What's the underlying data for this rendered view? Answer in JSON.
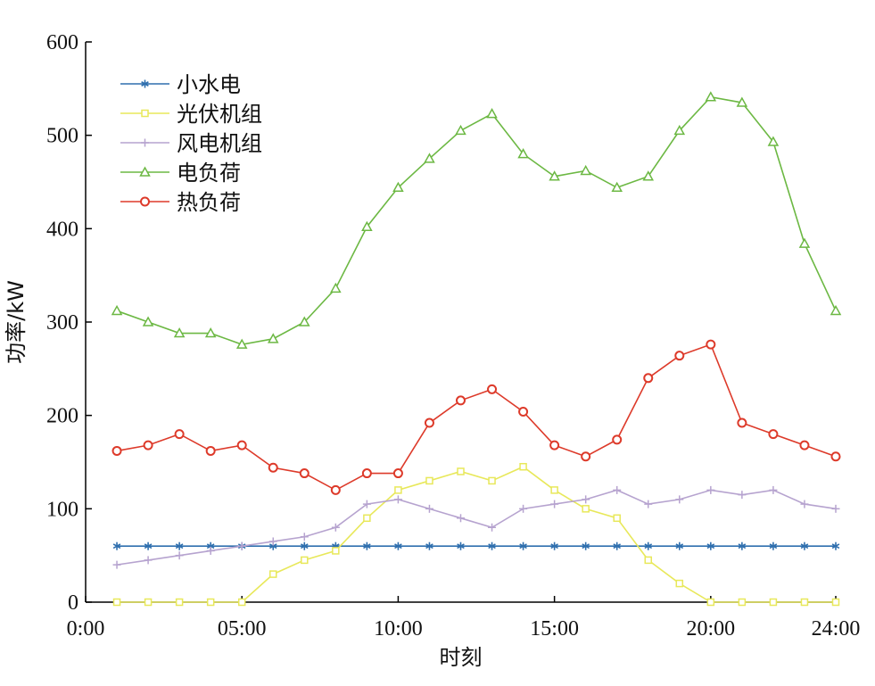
{
  "chart_data": {
    "type": "line",
    "xlabel": "时刻",
    "ylabel": "功率/kW",
    "x_unit": "hour",
    "xlim": [
      0,
      24
    ],
    "ylim": [
      0,
      600
    ],
    "x_ticks": [
      {
        "value": 0,
        "label": "0:00"
      },
      {
        "value": 5,
        "label": "05:00"
      },
      {
        "value": 10,
        "label": "10:00"
      },
      {
        "value": 15,
        "label": "15:00"
      },
      {
        "value": 20,
        "label": "20:00"
      },
      {
        "value": 24,
        "label": "24:00"
      }
    ],
    "y_ticks": [
      {
        "value": 0,
        "label": "0"
      },
      {
        "value": 100,
        "label": "100"
      },
      {
        "value": 200,
        "label": "200"
      },
      {
        "value": 300,
        "label": "300"
      },
      {
        "value": 400,
        "label": "400"
      },
      {
        "value": 500,
        "label": "500"
      },
      {
        "value": 600,
        "label": "600"
      }
    ],
    "grid": false,
    "legend_position": "top-left",
    "x": [
      1,
      2,
      3,
      4,
      5,
      6,
      7,
      8,
      9,
      10,
      11,
      12,
      13,
      14,
      15,
      16,
      17,
      18,
      19,
      20,
      21,
      22,
      23,
      24
    ],
    "series": [
      {
        "name": "小水电",
        "color": "#2f6fae",
        "marker": "star",
        "values": [
          60,
          60,
          60,
          60,
          60,
          60,
          60,
          60,
          60,
          60,
          60,
          60,
          60,
          60,
          60,
          60,
          60,
          60,
          60,
          60,
          60,
          60,
          60,
          60
        ]
      },
      {
        "name": "光伏机组",
        "color": "#e8e85a",
        "marker": "square",
        "values": [
          0,
          0,
          0,
          0,
          0,
          30,
          45,
          55,
          90,
          120,
          130,
          140,
          130,
          145,
          120,
          100,
          90,
          45,
          20,
          0,
          0,
          0,
          0,
          0
        ]
      },
      {
        "name": "风电机组",
        "color": "#b6a3cf",
        "marker": "plus",
        "values": [
          40,
          45,
          50,
          55,
          60,
          65,
          70,
          80,
          105,
          110,
          100,
          90,
          80,
          100,
          105,
          110,
          120,
          105,
          110,
          120,
          115,
          120,
          105,
          100
        ]
      },
      {
        "name": "电负荷",
        "color": "#6cb843",
        "marker": "triangle",
        "values": [
          312,
          300,
          288,
          288,
          276,
          282,
          300,
          336,
          402,
          444,
          475,
          505,
          523,
          480,
          456,
          462,
          444,
          456,
          505,
          541,
          535,
          493,
          384,
          312
        ]
      },
      {
        "name": "热负荷",
        "color": "#dd3a2a",
        "marker": "circle",
        "values": [
          162,
          168,
          180,
          162,
          168,
          144,
          138,
          120,
          138,
          138,
          192,
          216,
          228,
          204,
          168,
          156,
          174,
          240,
          264,
          276,
          192,
          180,
          168,
          156
        ]
      }
    ]
  }
}
